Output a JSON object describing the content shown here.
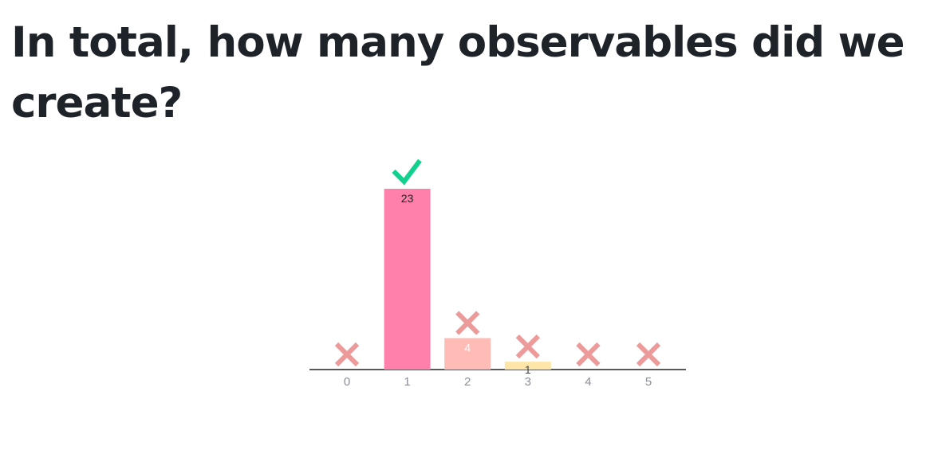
{
  "question": {
    "title": "In total, how many observables did we create?"
  },
  "chart_data": {
    "type": "bar",
    "title": "",
    "xlabel": "",
    "ylabel": "",
    "categories": [
      "0",
      "1",
      "2",
      "3",
      "4",
      "5"
    ],
    "values": [
      0,
      23,
      4,
      1,
      0,
      0
    ],
    "correct": [
      false,
      true,
      false,
      false,
      false,
      false
    ],
    "bar_colors": [
      "#ff80aa",
      "#ff80aa",
      "#ffbcb6",
      "#fde6a8",
      "#ff80aa",
      "#ff80aa"
    ],
    "label_colors": [
      "#222222",
      "#222222",
      "#ffffff",
      "#444444",
      "#222222",
      "#222222"
    ],
    "colors": {
      "axis": "#222222",
      "tick_text": "#8a8f98",
      "correct_mark": "#12d18e",
      "incorrect_mark": "#ec9a9a"
    },
    "marker_icons": {
      "correct": "check-icon",
      "incorrect": "cross-icon"
    },
    "grid": false,
    "legend": "none"
  }
}
